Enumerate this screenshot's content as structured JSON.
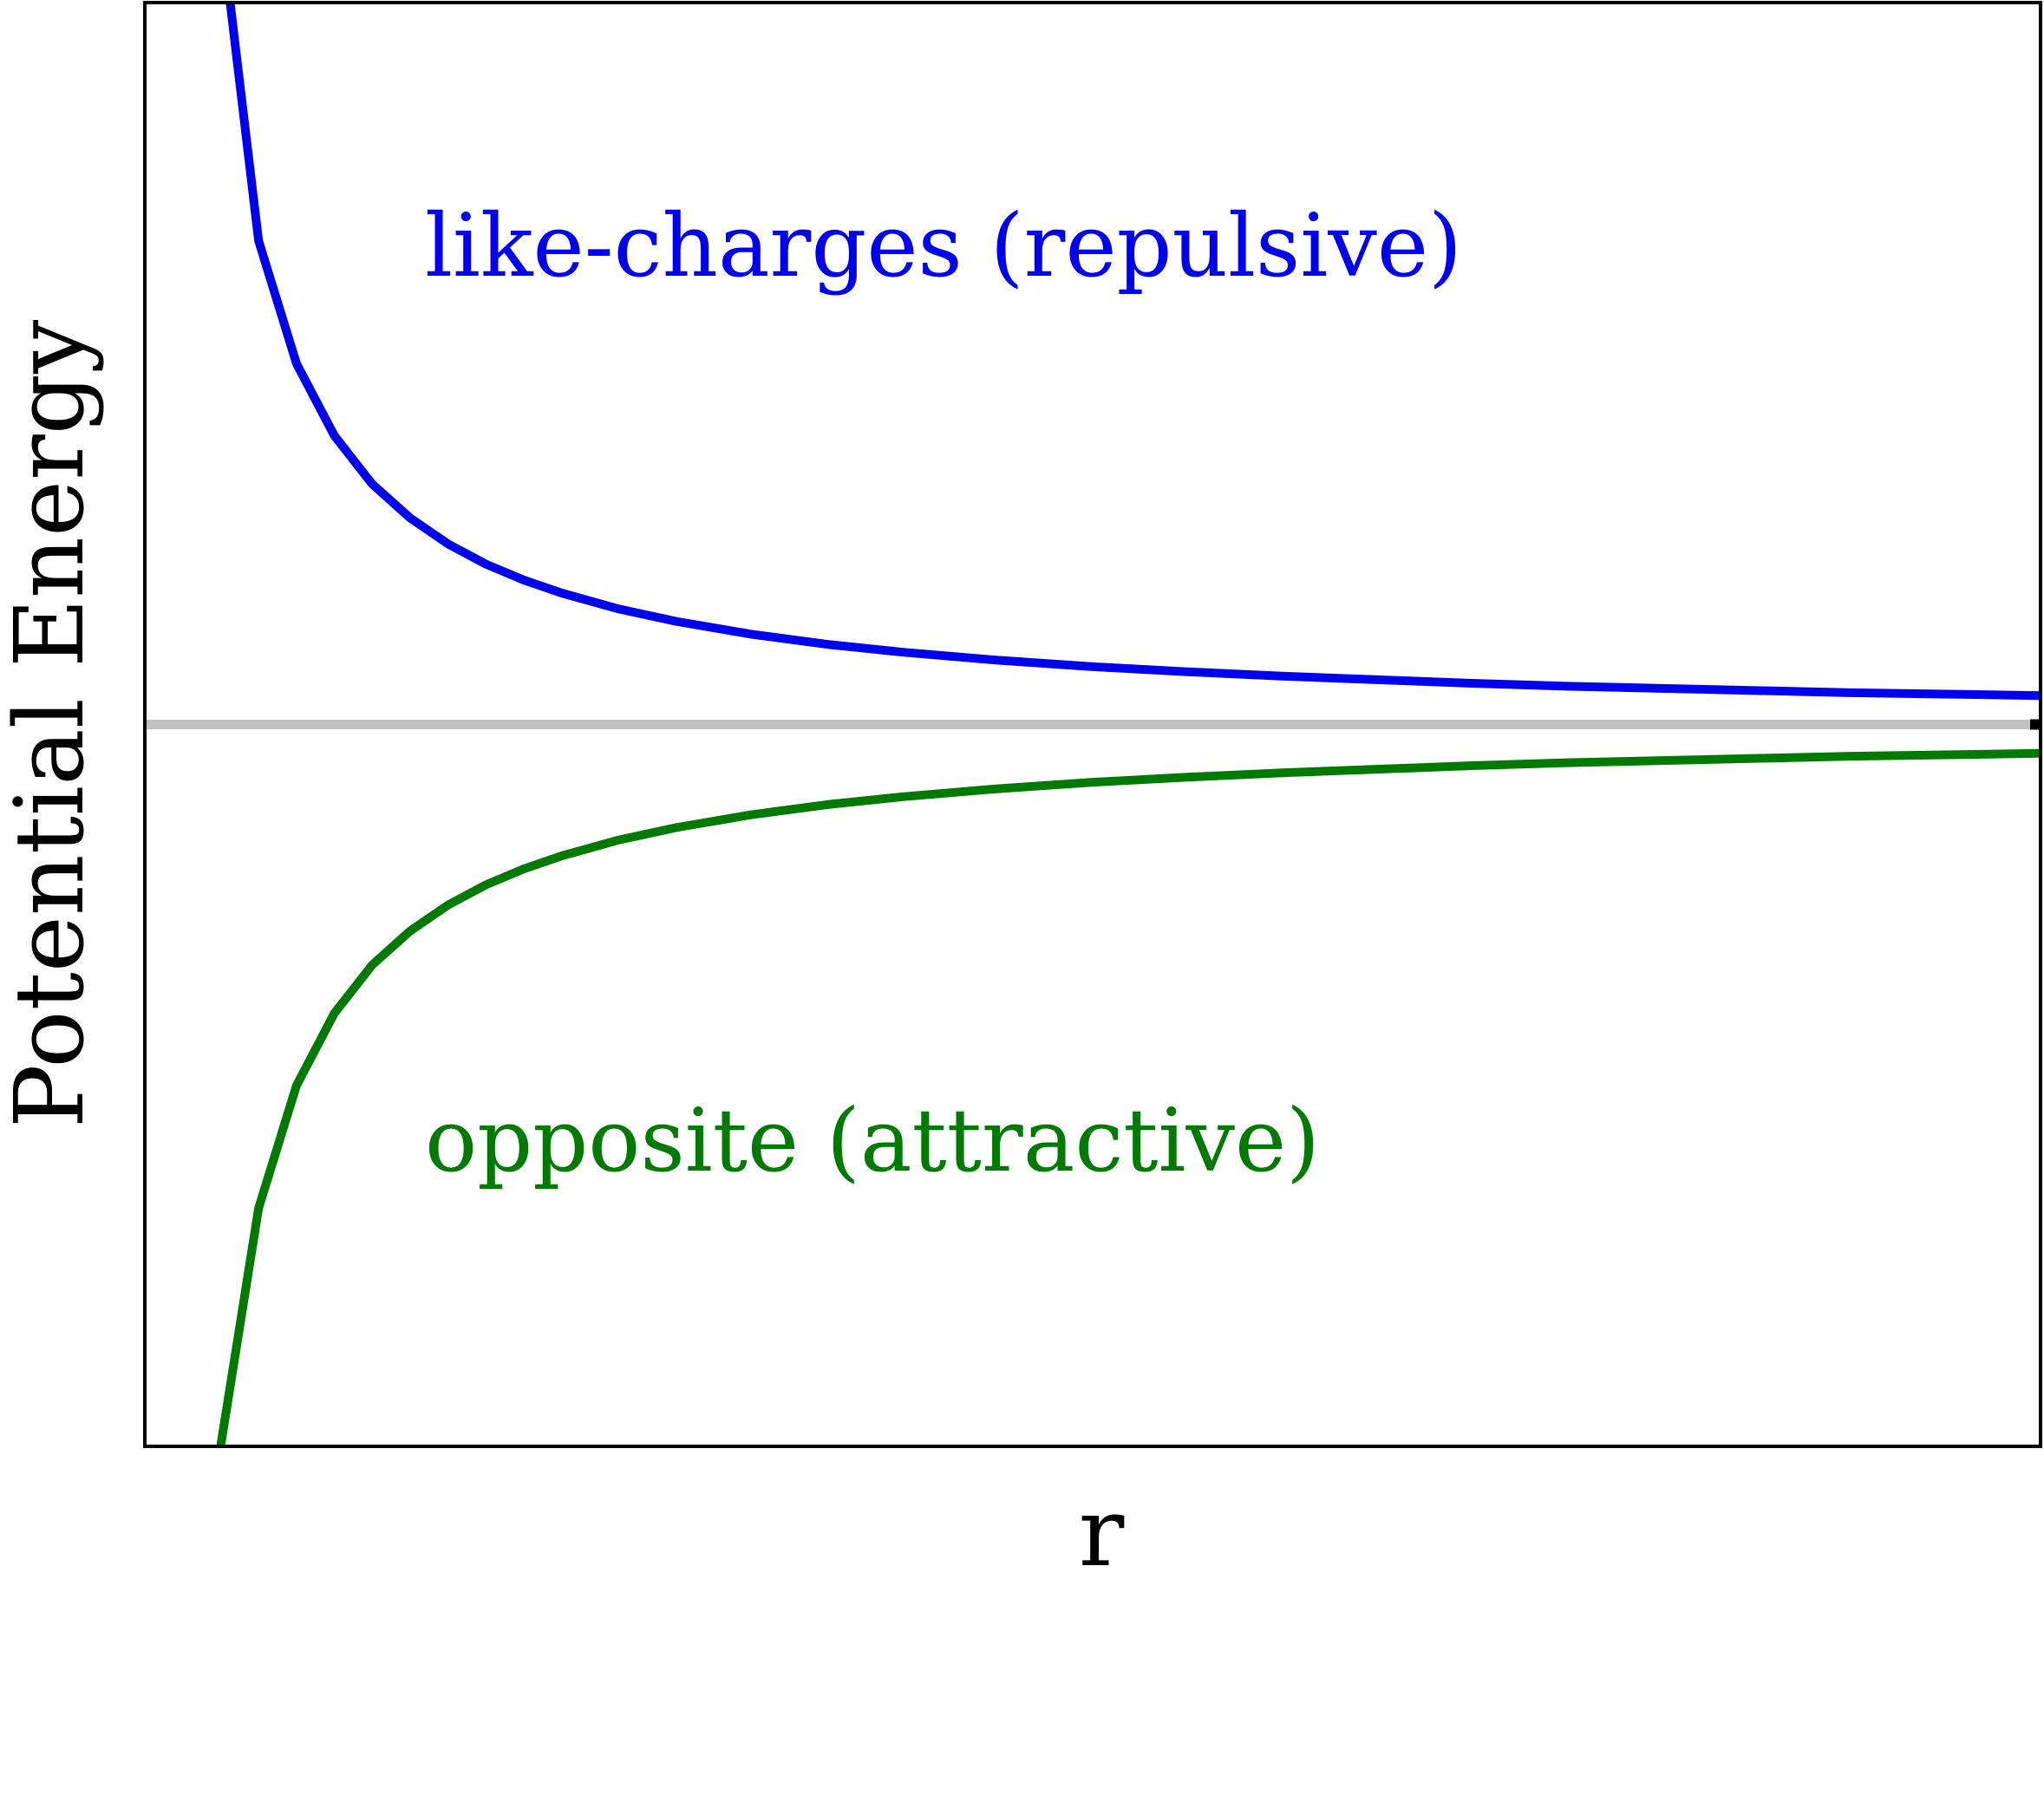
{
  "chart_data": {
    "type": "line",
    "xlabel": "r",
    "ylabel": "Potential Energy",
    "xlim": [
      0,
      1
    ],
    "ylim": [
      -1,
      1
    ],
    "grid": false,
    "zero_line": {
      "y": 0,
      "color": "#c0c0c0"
    },
    "series": [
      {
        "name": "like-charges (repulsive)",
        "color": "#0000ee",
        "x": [
          0.045,
          0.06,
          0.08,
          0.1,
          0.12,
          0.14,
          0.16,
          0.18,
          0.2,
          0.22,
          0.25,
          0.28,
          0.32,
          0.36,
          0.4,
          0.45,
          0.5,
          0.55,
          0.6,
          0.65,
          0.7,
          0.75,
          0.8,
          0.85,
          0.9,
          0.95,
          1.0
        ],
        "y": [
          1.0,
          0.67,
          0.5,
          0.4,
          0.333,
          0.286,
          0.25,
          0.222,
          0.2,
          0.182,
          0.16,
          0.143,
          0.125,
          0.111,
          0.1,
          0.089,
          0.08,
          0.073,
          0.067,
          0.062,
          0.057,
          0.053,
          0.05,
          0.047,
          0.044,
          0.042,
          0.04
        ]
      },
      {
        "name": "opposite (attractive)",
        "color": "#007a00",
        "x": [
          0.04,
          0.06,
          0.08,
          0.1,
          0.12,
          0.14,
          0.16,
          0.18,
          0.2,
          0.22,
          0.25,
          0.28,
          0.32,
          0.36,
          0.4,
          0.45,
          0.5,
          0.55,
          0.6,
          0.65,
          0.7,
          0.75,
          0.8,
          0.85,
          0.9,
          0.95,
          1.0
        ],
        "y": [
          -1.0,
          -0.67,
          -0.5,
          -0.4,
          -0.333,
          -0.286,
          -0.25,
          -0.222,
          -0.2,
          -0.182,
          -0.16,
          -0.143,
          -0.125,
          -0.111,
          -0.1,
          -0.089,
          -0.08,
          -0.073,
          -0.067,
          -0.062,
          -0.057,
          -0.053,
          -0.05,
          -0.047,
          -0.044,
          -0.042,
          -0.04
        ]
      }
    ]
  }
}
